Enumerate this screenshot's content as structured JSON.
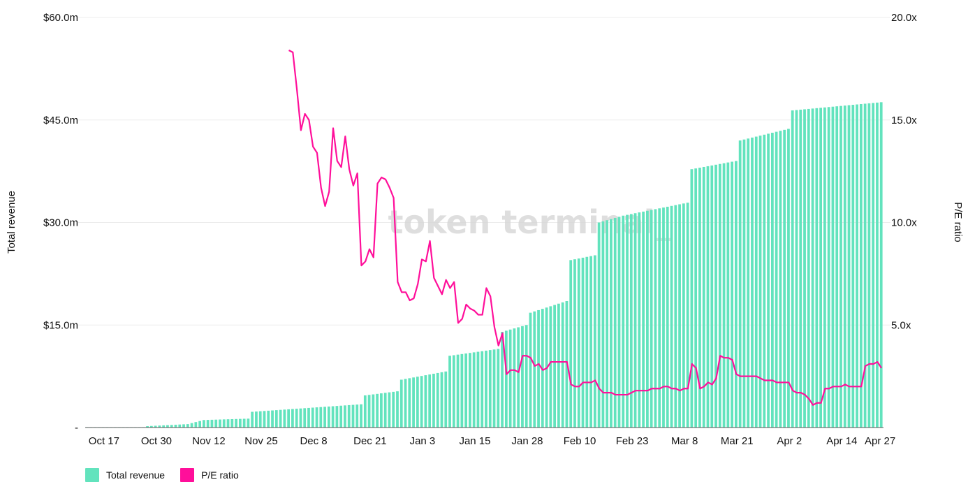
{
  "chart_data": {
    "type": "bar+line",
    "watermark": "token terminal_",
    "x_ticks": [
      "Oct 17",
      "Oct 30",
      "Nov 12",
      "Nov 25",
      "Dec 8",
      "Dec 21",
      "Jan 3",
      "Jan 15",
      "Jan 28",
      "Feb 10",
      "Feb 23",
      "Mar 8",
      "Mar 21",
      "Apr 2",
      "Apr 14",
      "Apr 27"
    ],
    "y_left": {
      "label": "Total revenue",
      "ticks": [
        "-",
        "$15.0m",
        "$30.0m",
        "$45.0m",
        "$60.0m"
      ],
      "range": [
        0,
        60
      ],
      "unit": "$m"
    },
    "y_right": {
      "label": "P/E ratio",
      "ticks": [
        "",
        "5.0x",
        "10.0x",
        "15.0x",
        "20.0x"
      ],
      "range": [
        0,
        20
      ]
    },
    "grid": true,
    "legend_position": "bottom-left",
    "colors": {
      "revenue": "#62e3bd",
      "pe": "#ff0f9a"
    },
    "series": [
      {
        "name": "Total revenue",
        "type": "bar",
        "axis": "left",
        "step_anchors": [
          [
            0,
            0.0
          ],
          [
            14,
            0.05
          ],
          [
            15,
            0.2
          ],
          [
            25,
            0.5
          ],
          [
            29,
            1.1
          ],
          [
            40,
            1.3
          ],
          [
            41,
            2.3
          ],
          [
            68,
            3.4
          ],
          [
            69,
            4.7
          ],
          [
            77,
            5.3
          ],
          [
            78,
            7.0
          ],
          [
            89,
            8.2
          ],
          [
            90,
            10.5
          ],
          [
            102,
            11.5
          ],
          [
            103,
            14.0
          ],
          [
            109,
            15.0
          ],
          [
            110,
            16.8
          ],
          [
            119,
            18.5
          ],
          [
            120,
            24.5
          ],
          [
            126,
            25.2
          ],
          [
            127,
            30.0
          ],
          [
            133,
            31.0
          ],
          [
            149,
            32.9
          ],
          [
            150,
            37.8
          ],
          [
            161,
            39.0
          ],
          [
            162,
            42.0
          ],
          [
            174,
            43.7
          ],
          [
            175,
            46.4
          ],
          [
            197,
            47.6
          ]
        ]
      },
      {
        "name": "P/E ratio",
        "type": "line",
        "axis": "right",
        "points": [
          [
            50,
            18.4
          ],
          [
            51,
            18.3
          ],
          [
            52,
            16.5
          ],
          [
            53,
            14.5
          ],
          [
            54,
            15.3
          ],
          [
            55,
            15.0
          ],
          [
            56,
            13.7
          ],
          [
            57,
            13.4
          ],
          [
            58,
            11.7
          ],
          [
            59,
            10.8
          ],
          [
            60,
            11.5
          ],
          [
            61,
            14.6
          ],
          [
            62,
            13.0
          ],
          [
            63,
            12.7
          ],
          [
            64,
            14.2
          ],
          [
            65,
            12.6
          ],
          [
            66,
            11.8
          ],
          [
            67,
            12.4
          ],
          [
            68,
            7.9
          ],
          [
            69,
            8.1
          ],
          [
            70,
            8.7
          ],
          [
            71,
            8.3
          ],
          [
            72,
            11.9
          ],
          [
            73,
            12.2
          ],
          [
            74,
            12.1
          ],
          [
            75,
            11.7
          ],
          [
            76,
            11.2
          ],
          [
            77,
            7.1
          ],
          [
            78,
            6.6
          ],
          [
            79,
            6.6
          ],
          [
            80,
            6.2
          ],
          [
            81,
            6.3
          ],
          [
            82,
            7.0
          ],
          [
            83,
            8.2
          ],
          [
            84,
            8.1
          ],
          [
            85,
            9.1
          ],
          [
            86,
            7.3
          ],
          [
            87,
            6.9
          ],
          [
            88,
            6.5
          ],
          [
            89,
            7.2
          ],
          [
            90,
            6.8
          ],
          [
            91,
            7.1
          ],
          [
            92,
            5.1
          ],
          [
            93,
            5.3
          ],
          [
            94,
            6.0
          ],
          [
            95,
            5.8
          ],
          [
            96,
            5.7
          ],
          [
            97,
            5.5
          ],
          [
            98,
            5.5
          ],
          [
            99,
            6.8
          ],
          [
            100,
            6.4
          ],
          [
            101,
            4.9
          ],
          [
            102,
            4.0
          ],
          [
            103,
            4.6
          ],
          [
            104,
            2.6
          ],
          [
            105,
            2.8
          ],
          [
            106,
            2.8
          ],
          [
            107,
            2.7
          ],
          [
            108,
            3.5
          ],
          [
            109,
            3.5
          ],
          [
            110,
            3.4
          ],
          [
            111,
            3.0
          ],
          [
            112,
            3.1
          ],
          [
            113,
            2.8
          ],
          [
            114,
            2.9
          ],
          [
            115,
            3.2
          ],
          [
            116,
            3.2
          ],
          [
            117,
            3.2
          ],
          [
            118,
            3.2
          ],
          [
            119,
            3.2
          ],
          [
            120,
            2.1
          ],
          [
            121,
            2.0
          ],
          [
            122,
            2.0
          ],
          [
            123,
            2.2
          ],
          [
            124,
            2.2
          ],
          [
            125,
            2.2
          ],
          [
            126,
            2.3
          ],
          [
            127,
            1.9
          ],
          [
            128,
            1.7
          ],
          [
            129,
            1.7
          ],
          [
            130,
            1.7
          ],
          [
            131,
            1.6
          ],
          [
            132,
            1.6
          ],
          [
            133,
            1.6
          ],
          [
            134,
            1.6
          ],
          [
            135,
            1.7
          ],
          [
            136,
            1.8
          ],
          [
            137,
            1.8
          ],
          [
            138,
            1.8
          ],
          [
            139,
            1.8
          ],
          [
            140,
            1.9
          ],
          [
            141,
            1.9
          ],
          [
            142,
            1.9
          ],
          [
            143,
            2.0
          ],
          [
            144,
            2.0
          ],
          [
            145,
            1.9
          ],
          [
            146,
            1.9
          ],
          [
            147,
            1.8
          ],
          [
            148,
            1.9
          ],
          [
            149,
            1.9
          ],
          [
            150,
            3.1
          ],
          [
            151,
            2.9
          ],
          [
            152,
            1.9
          ],
          [
            153,
            2.0
          ],
          [
            154,
            2.2
          ],
          [
            155,
            2.1
          ],
          [
            156,
            2.4
          ],
          [
            157,
            3.5
          ],
          [
            158,
            3.4
          ],
          [
            159,
            3.4
          ],
          [
            160,
            3.3
          ],
          [
            161,
            2.6
          ],
          [
            162,
            2.5
          ],
          [
            163,
            2.5
          ],
          [
            164,
            2.5
          ],
          [
            165,
            2.5
          ],
          [
            166,
            2.5
          ],
          [
            167,
            2.4
          ],
          [
            168,
            2.3
          ],
          [
            169,
            2.3
          ],
          [
            170,
            2.3
          ],
          [
            171,
            2.2
          ],
          [
            172,
            2.2
          ],
          [
            173,
            2.2
          ],
          [
            174,
            2.2
          ],
          [
            175,
            1.8
          ],
          [
            176,
            1.7
          ],
          [
            177,
            1.7
          ],
          [
            178,
            1.6
          ],
          [
            179,
            1.4
          ],
          [
            180,
            1.1
          ],
          [
            181,
            1.2
          ],
          [
            182,
            1.2
          ],
          [
            183,
            1.9
          ],
          [
            184,
            1.9
          ],
          [
            185,
            2.0
          ],
          [
            186,
            2.0
          ],
          [
            187,
            2.0
          ],
          [
            188,
            2.1
          ],
          [
            189,
            2.0
          ],
          [
            190,
            2.0
          ],
          [
            191,
            2.0
          ],
          [
            192,
            2.0
          ],
          [
            193,
            3.0
          ],
          [
            194,
            3.1
          ],
          [
            195,
            3.1
          ],
          [
            196,
            3.2
          ],
          [
            197,
            2.9
          ]
        ]
      }
    ]
  }
}
